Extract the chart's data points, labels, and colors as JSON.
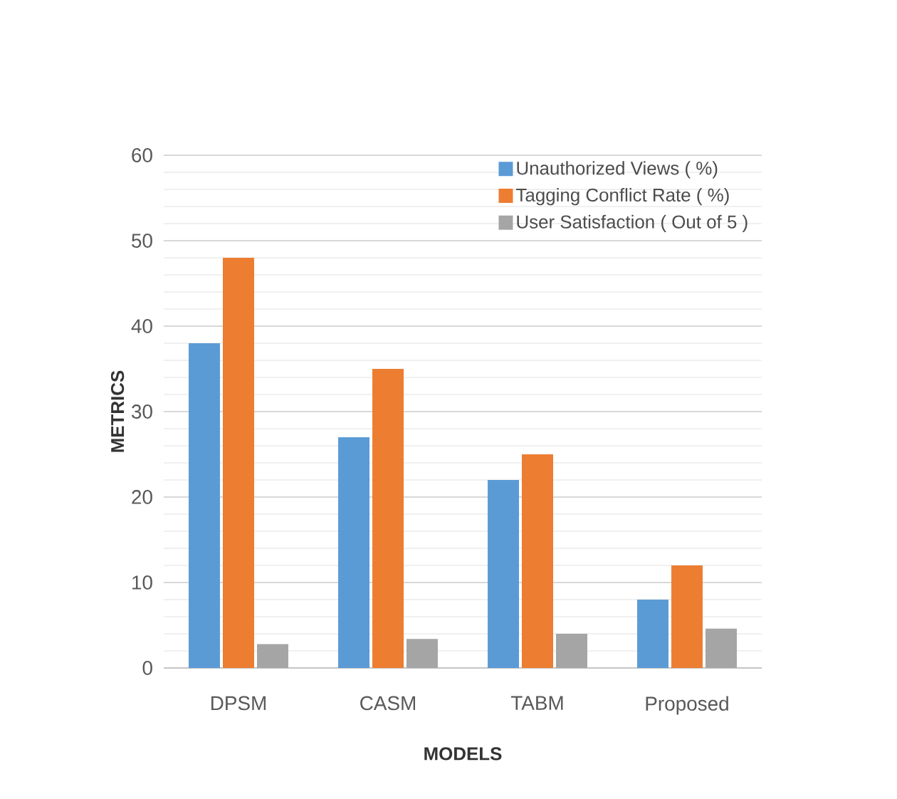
{
  "chart_data": {
    "type": "bar",
    "xlabel": "MODELS",
    "ylabel": "METRICS",
    "categories": [
      "DPSM",
      "CASM",
      "TABM",
      "Proposed"
    ],
    "series": [
      {
        "name": "Unauthorized Views ( %)",
        "color": "#5b9bd5",
        "values": [
          38,
          27,
          22,
          8
        ]
      },
      {
        "name": "Tagging Conflict Rate ( %)",
        "color": "#ed7d31",
        "values": [
          48,
          35,
          25,
          12
        ]
      },
      {
        "name": "User Satisfaction ( Out of 5 )",
        "color": "#a5a5a5",
        "values": [
          2.8,
          3.4,
          4.0,
          4.6
        ]
      }
    ],
    "ylim": [
      0,
      60
    ],
    "yticks": [
      0,
      10,
      20,
      30,
      40,
      50,
      60
    ],
    "grid": "y",
    "legend": "top right"
  }
}
